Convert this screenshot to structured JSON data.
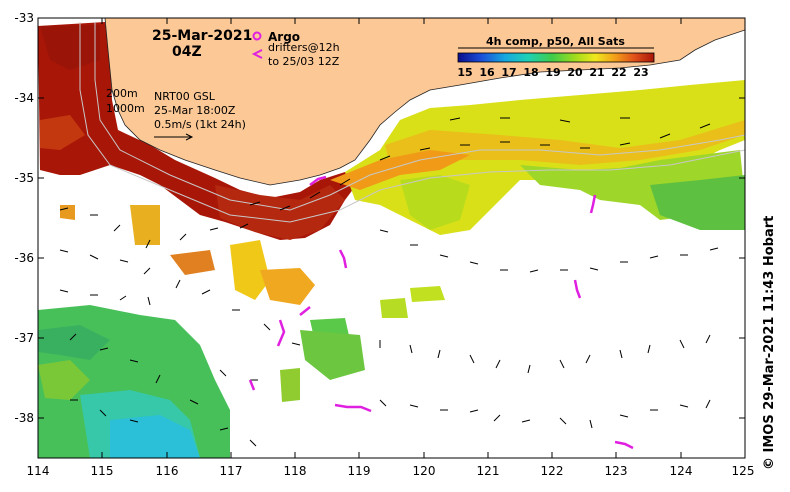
{
  "header": {
    "date": "25-Mar-2021",
    "time": "04Z"
  },
  "legend": {
    "argo_label": "Argo",
    "drifters_line1": "drifters@12h",
    "drifters_line2": "to 25/03 12Z",
    "isobath_200": "200m",
    "isobath_1000": "1000m",
    "current_source": "NRT00 GSL",
    "current_time": "25-Mar 18:00Z",
    "vector_scale": "0.5m/s (1kt 24h)"
  },
  "colorbar": {
    "title": "4h comp, p50, All Sats",
    "labels": [
      "15",
      "16",
      "17",
      "18",
      "19",
      "20",
      "21",
      "22",
      "23"
    ],
    "colors": [
      "#0b0f8c",
      "#1c4fd8",
      "#16a8e0",
      "#1fd1b4",
      "#3fcc4a",
      "#a2dc1c",
      "#f0e81e",
      "#f2a01a",
      "#e0501a",
      "#a81608"
    ]
  },
  "axes": {
    "lon_ticks": [
      "114",
      "115",
      "116",
      "117",
      "118",
      "119",
      "120",
      "121",
      "122",
      "123",
      "124",
      "125"
    ],
    "lat_ticks": [
      "-33",
      "-34",
      "-35",
      "-36",
      "-37",
      "-38"
    ]
  },
  "map_colors": {
    "land": "#fcc896",
    "ocean_nodata": "#ffffff",
    "drifter": "#e020e0",
    "isobath": "#c8c8c8",
    "vector": "#000000"
  },
  "credit": "© IMOS 29-Mar-2021 11:43 Hobart"
}
